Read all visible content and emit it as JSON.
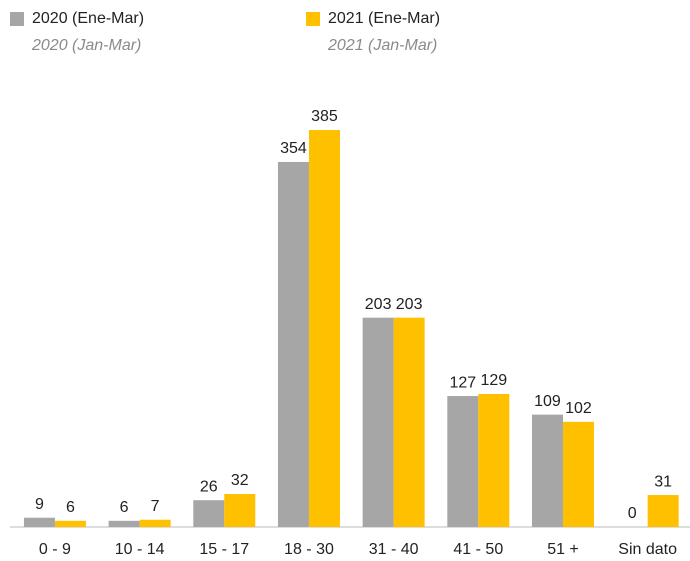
{
  "chart_data": {
    "type": "bar",
    "categories": [
      "0 - 9",
      "10 - 14",
      "15 - 17",
      "18 - 30",
      "31 - 40",
      "41 - 50",
      "51 +",
      "Sin dato"
    ],
    "series": [
      {
        "name": "2020 (Ene-Mar)",
        "subtitle": "2020 (Jan-Mar)",
        "color": "#a6a6a6",
        "values": [
          9,
          6,
          26,
          354,
          203,
          127,
          109,
          0
        ]
      },
      {
        "name": "2021 (Ene-Mar)",
        "subtitle": "2021 (Jan-Mar)",
        "color": "#ffc000",
        "values": [
          6,
          7,
          32,
          385,
          203,
          129,
          102,
          31
        ]
      }
    ],
    "ylim": [
      0,
      385
    ],
    "legend": "top-left"
  }
}
